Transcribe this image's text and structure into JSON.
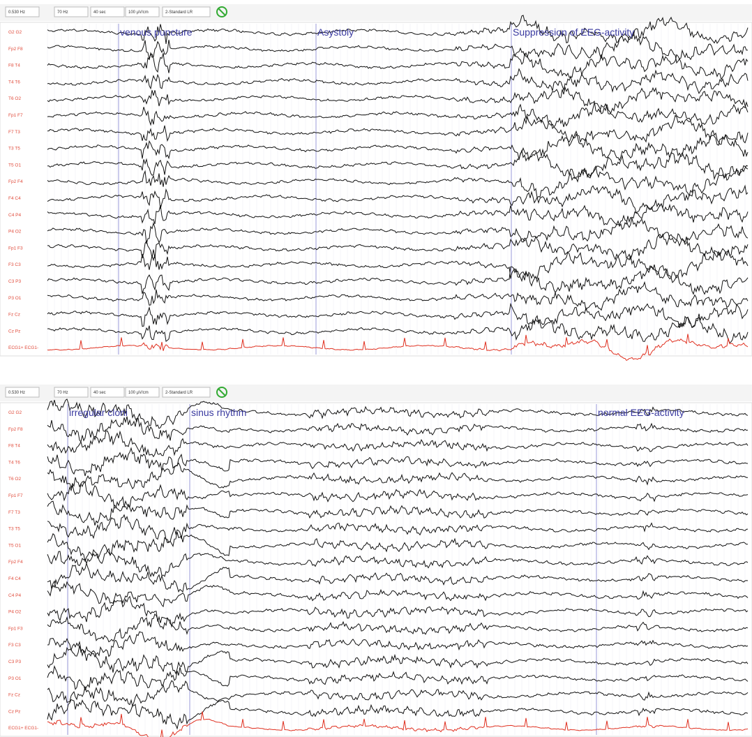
{
  "panels": [
    {
      "toolbar": [
        "0.530 Hz",
        "70 Hz",
        "40 sec",
        "100 µV/cm",
        "2-Standard LR"
      ],
      "channels": [
        "G2 G2",
        "Fp2 F8",
        "F8 T4",
        "T4 T6",
        "T6 O2",
        "Fp1 F7",
        "F7 T3",
        "T3 T5",
        "T5 O1",
        "Fp2 F4",
        "F4 C4",
        "C4 P4",
        "P4 O2",
        "Fp1 F3",
        "F3 C3",
        "C3 P3",
        "P3 O1",
        "Fz Cz",
        "Cz Pz",
        "ECG1+ ECG1-"
      ],
      "annotations": [
        "venous puncture",
        "Asystoly",
        "Suppression of EEG-activity"
      ]
    },
    {
      "toolbar": [
        "0.530 Hz",
        "70 Hz",
        "40 sec",
        "100 µV/cm",
        "2-Standard LR"
      ],
      "channels": [
        "G2 G2",
        "Fp2 F8",
        "F8 T4",
        "T4 T6",
        "T6 O2",
        "Fp1 F7",
        "F7 T3",
        "T3 T5",
        "T5 O1",
        "Fp2 F4",
        "F4 C4",
        "C4 P4",
        "P4 O2",
        "Fp1 F3",
        "F3 C3",
        "C3 P3",
        "P3 O1",
        "Fz Cz",
        "Cz Pz",
        "ECG1+ ECG1-"
      ],
      "annotations": [
        "irregular cloni",
        "sinus rhythm",
        "normal EEG-activity"
      ]
    }
  ]
}
